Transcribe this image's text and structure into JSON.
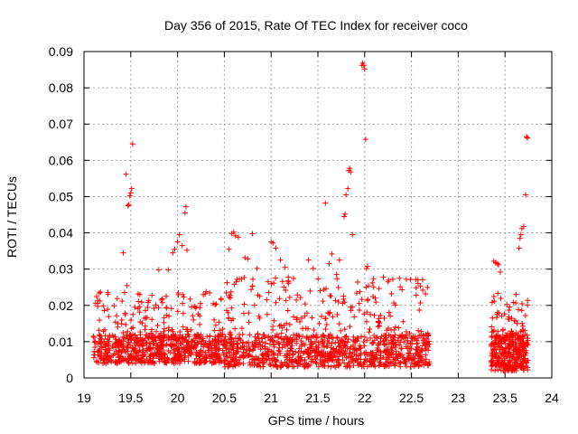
{
  "chart_data": {
    "type": "scatter",
    "title": "Day 356 of 2015, Rate Of TEC Index for receiver coco",
    "xlabel": "GPS time / hours",
    "ylabel": "ROTI / TECUs",
    "xlim": [
      19,
      24
    ],
    "ylim": [
      0,
      0.09
    ],
    "x_ticks": [
      19,
      19.5,
      20,
      20.5,
      21,
      21.5,
      22,
      22.5,
      23,
      23.5,
      24
    ],
    "x_tick_labels": [
      "19",
      "19.5",
      "20",
      "20.5",
      "21",
      "21.5",
      "22",
      "22.5",
      "23",
      "23.5",
      "24"
    ],
    "y_ticks": [
      0,
      0.01,
      0.02,
      0.03,
      0.04,
      0.05,
      0.06,
      0.07,
      0.08,
      0.09
    ],
    "y_tick_labels": [
      "0",
      "0.01",
      "0.02",
      "0.03",
      "0.04",
      "0.05",
      "0.06",
      "0.07",
      "0.08",
      "0.09"
    ],
    "grid": true,
    "marker": "plus",
    "series": [
      {
        "name": "ROTI",
        "color": "#ff0000",
        "outliers": [
          [
            19.42,
            0.0345
          ],
          [
            19.45,
            0.0562
          ],
          [
            19.47,
            0.0475
          ],
          [
            19.48,
            0.0478
          ],
          [
            19.49,
            0.0502
          ],
          [
            19.5,
            0.051
          ],
          [
            19.51,
            0.0522
          ],
          [
            19.52,
            0.0645
          ],
          [
            19.46,
            0.0255
          ],
          [
            19.8,
            0.0298
          ],
          [
            19.9,
            0.0298
          ],
          [
            19.95,
            0.0345
          ],
          [
            19.97,
            0.0355
          ],
          [
            20.0,
            0.0375
          ],
          [
            20.02,
            0.0395
          ],
          [
            20.05,
            0.0365
          ],
          [
            20.08,
            0.0455
          ],
          [
            20.09,
            0.0472
          ],
          [
            20.1,
            0.0352
          ],
          [
            20.55,
            0.0355
          ],
          [
            20.58,
            0.0398
          ],
          [
            20.6,
            0.0402
          ],
          [
            20.62,
            0.0392
          ],
          [
            20.65,
            0.0388
          ],
          [
            20.72,
            0.0332
          ],
          [
            20.75,
            0.0328
          ],
          [
            20.8,
            0.0398
          ],
          [
            20.85,
            0.0302
          ],
          [
            21.0,
            0.0375
          ],
          [
            21.02,
            0.0372
          ],
          [
            21.05,
            0.0358
          ],
          [
            21.1,
            0.0325
          ],
          [
            21.15,
            0.0305
          ],
          [
            21.4,
            0.0325
          ],
          [
            21.45,
            0.0302
          ],
          [
            21.58,
            0.0482
          ],
          [
            21.62,
            0.0315
          ],
          [
            21.65,
            0.0342
          ],
          [
            21.7,
            0.0285
          ],
          [
            21.73,
            0.0325
          ],
          [
            21.78,
            0.0445
          ],
          [
            21.79,
            0.0452
          ],
          [
            21.8,
            0.0505
          ],
          [
            21.82,
            0.0522
          ],
          [
            21.83,
            0.0572
          ],
          [
            21.84,
            0.0578
          ],
          [
            21.85,
            0.0568
          ],
          [
            21.87,
            0.0395
          ],
          [
            21.97,
            0.0862
          ],
          [
            21.98,
            0.0868
          ],
          [
            21.99,
            0.0862
          ],
          [
            22.0,
            0.0852
          ],
          [
            22.01,
            0.0658
          ],
          [
            22.02,
            0.0302
          ],
          [
            22.03,
            0.0308
          ],
          [
            22.2,
            0.0278
          ],
          [
            22.25,
            0.0265
          ],
          [
            22.3,
            0.0272
          ],
          [
            22.62,
            0.0242
          ],
          [
            22.65,
            0.0232
          ],
          [
            23.38,
            0.0322
          ],
          [
            23.4,
            0.0318
          ],
          [
            23.42,
            0.0315
          ],
          [
            23.43,
            0.0312
          ],
          [
            23.45,
            0.0292
          ],
          [
            23.65,
            0.0358
          ],
          [
            23.66,
            0.0385
          ],
          [
            23.67,
            0.0395
          ],
          [
            23.68,
            0.0412
          ],
          [
            23.7,
            0.0418
          ],
          [
            23.72,
            0.0505
          ],
          [
            23.73,
            0.0665
          ],
          [
            23.74,
            0.0662
          ]
        ],
        "bulk": [
          {
            "x": [
              19.1,
              20.5
            ],
            "y_base": [
              0.004,
              0.012
            ],
            "y_peak": 0.024,
            "count": 780
          },
          {
            "x": [
              20.5,
              22.7
            ],
            "y_base": [
              0.003,
              0.012
            ],
            "y_peak": 0.028,
            "count": 1050
          },
          {
            "x": [
              23.35,
              23.75
            ],
            "y_base": [
              0.002,
              0.012
            ],
            "y_peak": 0.024,
            "count": 360
          }
        ]
      }
    ]
  }
}
